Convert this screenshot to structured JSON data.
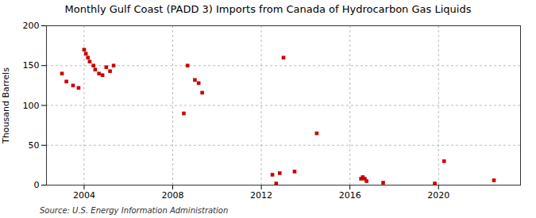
{
  "chart_data": {
    "type": "scatter",
    "title": "Monthly Gulf Coast (PADD 3) Imports from Canada of Hydrocarbon Gas Liquids",
    "ylabel": "Thousand Barrels",
    "source": "Source: U.S. Energy Information Administration",
    "x": [
      2003.0,
      2003.2,
      2003.5,
      2003.75,
      2004.0,
      2004.08,
      2004.17,
      2004.25,
      2004.42,
      2004.5,
      2004.67,
      2004.83,
      2005.0,
      2005.17,
      2005.33,
      2008.5,
      2008.67,
      2009.0,
      2009.17,
      2009.33,
      2012.5,
      2012.67,
      2012.83,
      2013.0,
      2013.5,
      2014.5,
      2016.5,
      2016.58,
      2016.67,
      2016.75,
      2017.5,
      2019.83,
      2020.25,
      2022.5
    ],
    "values": [
      140,
      130,
      125,
      122,
      170,
      165,
      160,
      155,
      150,
      145,
      140,
      138,
      148,
      143,
      150,
      90,
      150,
      132,
      128,
      116,
      13,
      2,
      15,
      160,
      17,
      65,
      8,
      10,
      8,
      5,
      3,
      2,
      30,
      6
    ],
    "color": "#cc0000",
    "marker": "square",
    "xlim": [
      2002.3,
      2023.7
    ],
    "ylim": [
      0,
      200
    ],
    "xticks": [
      2004,
      2008,
      2012,
      2016,
      2020
    ],
    "yticks": [
      0,
      50,
      100,
      150,
      200
    ],
    "grid": true
  }
}
